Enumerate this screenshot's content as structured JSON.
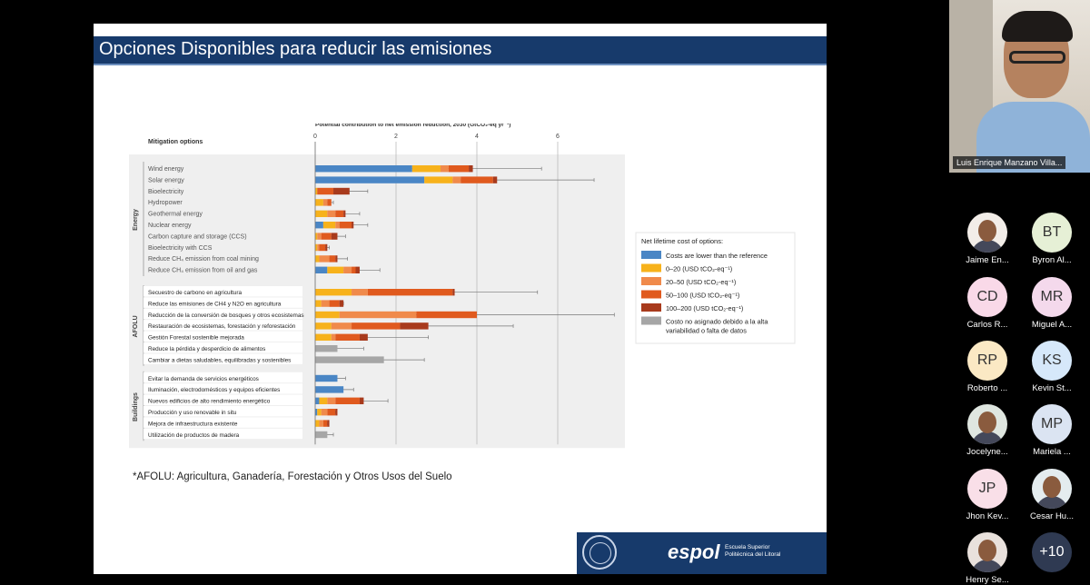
{
  "slide": {
    "title": "Opciones Disponibles para reducir las emisiones",
    "footnote": "*AFOLU: Agricultura, Ganadería, Forestación y Otros Usos del Suelo",
    "logo_text": "espol",
    "logo_subtitle": "Escuela Superior Politécnica del Litoral"
  },
  "chart_data": {
    "type": "bar",
    "stacked": true,
    "orientation": "horizontal",
    "title": "Potential contribution to net emission reduction, 2030 (GtCO₂-eq yr⁻¹)",
    "row_header": "Mitigation options",
    "xlim": [
      0,
      7
    ],
    "x_ticks": [
      "0",
      "2",
      "4",
      "6"
    ],
    "x_tick_values": [
      0,
      2,
      4,
      6
    ],
    "grid": true,
    "legend_position": "right",
    "legend_title": "Net lifetime cost of options:",
    "legend": [
      {
        "label": "Costs are lower than the reference",
        "color": "#4a86c5"
      },
      {
        "label": "0–20 (USD tCO₂-eq⁻¹)",
        "color": "#f7b21b"
      },
      {
        "label": "20–50 (USD tCO₂-eq⁻¹)",
        "color": "#f08a4b"
      },
      {
        "label": "50–100 (USD tCO₂-eq⁻¹)",
        "color": "#e05a1e"
      },
      {
        "label": "100–200 (USD tCO₂-eq⁻¹)",
        "color": "#a83a1c"
      },
      {
        "label": "Costo no asignado debido a la alta variabilidad o falta de datos",
        "color": "#a6a6a6"
      }
    ],
    "groups": [
      {
        "name": "Energy",
        "first_row": 0,
        "last_row": 9
      },
      {
        "name": "AFOLU",
        "first_row": 10,
        "last_row": 16
      },
      {
        "name": "Buildings",
        "first_row": 17,
        "last_row": 22
      }
    ],
    "rows": [
      {
        "label": "Wind energy",
        "segments": [
          2.4,
          0.7,
          0.2,
          0.5,
          0.1,
          0
        ],
        "error_max": 5.6
      },
      {
        "label": "Solar energy",
        "segments": [
          2.7,
          0.7,
          0.2,
          0.8,
          0.1,
          0
        ],
        "error_max": 6.9
      },
      {
        "label": "Bioelectricity",
        "segments": [
          0,
          0.05,
          0,
          0.4,
          0.4,
          0
        ],
        "error_max": 1.3
      },
      {
        "label": "Hydropower",
        "segments": [
          0,
          0.2,
          0.1,
          0.1,
          0,
          0
        ],
        "error_max": 0.45
      },
      {
        "label": "Geothermal energy",
        "segments": [
          0,
          0.3,
          0.2,
          0.2,
          0.05,
          0
        ],
        "error_max": 1.1
      },
      {
        "label": "Nuclear energy",
        "segments": [
          0.2,
          0.3,
          0.1,
          0.3,
          0.05,
          0
        ],
        "error_max": 1.3
      },
      {
        "label": "Carbon capture and storage (CCS)",
        "segments": [
          0,
          0.05,
          0.1,
          0.25,
          0.15,
          0
        ],
        "error_max": 0.75
      },
      {
        "label": "Bioelectricity with CCS",
        "segments": [
          0,
          0.05,
          0.05,
          0.15,
          0.05,
          0
        ],
        "error_max": 0.35
      },
      {
        "label": "Reduce CH₄ emission from coal mining",
        "segments": [
          0,
          0.1,
          0.25,
          0.15,
          0.05,
          0
        ],
        "error_max": 0.8
      },
      {
        "label": "Reduce CH₄ emission from oil and gas",
        "segments": [
          0.3,
          0.4,
          0.2,
          0.1,
          0.1,
          0
        ],
        "error_max": 1.6
      },
      {
        "label": "Secuestro de carbono en agricultura",
        "segments": [
          0,
          0.9,
          0.4,
          2.1,
          0.05,
          0
        ],
        "error_max": 5.5
      },
      {
        "label": "Reduce las emisiones de CH4 y N2O en agricultura",
        "segments": [
          0,
          0.15,
          0.2,
          0.25,
          0.1,
          0
        ],
        "error_max": 0.7
      },
      {
        "label": "Reducción de la conversión de bosques y otros ecosistemas",
        "segments": [
          0,
          0.6,
          1.9,
          1.5,
          0,
          0
        ],
        "error_max": 7.4
      },
      {
        "label": "Restauración de ecosistemas, forestación y reforestación",
        "segments": [
          0,
          0.4,
          0.5,
          1.2,
          0.7,
          0
        ],
        "error_max": 4.9
      },
      {
        "label": "Gestión Forestal sostenible mejorada",
        "segments": [
          0,
          0.4,
          0.1,
          0.6,
          0.2,
          0
        ],
        "error_max": 2.8
      },
      {
        "label": "Reduce la pérdida y desperdicio de alimentos",
        "segments": [
          0,
          0,
          0,
          0,
          0,
          0.55
        ],
        "error_max": 1.2
      },
      {
        "label": "Cambiar a dietas saludables, equilibradas y sostenibles",
        "segments": [
          0,
          0,
          0,
          0,
          0,
          1.7
        ],
        "error_max": 2.7
      },
      {
        "label": "Evitar la demanda de servicios energéticos",
        "segments": [
          0.55,
          0,
          0,
          0,
          0,
          0
        ],
        "error_max": 0.75
      },
      {
        "label": "Iluminación, electrodomésticos y equipos eficientes",
        "segments": [
          0.7,
          0,
          0,
          0,
          0,
          0
        ],
        "error_max": 0.95
      },
      {
        "label": "Nuevos edificios de alto rendimiento energético",
        "segments": [
          0.1,
          0.2,
          0.2,
          0.6,
          0.1,
          0
        ],
        "error_max": 1.8
      },
      {
        "label": "Producción y uso renovable in situ",
        "segments": [
          0.05,
          0.1,
          0.15,
          0.2,
          0.05,
          0
        ],
        "error_max": 0.5
      },
      {
        "label": "Mejora de infraestructura existente",
        "segments": [
          0,
          0.1,
          0.1,
          0.1,
          0.05,
          0
        ],
        "error_max": 0.3
      },
      {
        "label": "Utilización de productos de madera",
        "segments": [
          0,
          0,
          0,
          0,
          0,
          0.3
        ],
        "error_max": 0.45
      }
    ]
  },
  "presenter": {
    "name": "Luis Enrique Manzano Villa..."
  },
  "participants": [
    {
      "initials": "",
      "name": "Jaime En...",
      "color": "#f2ede8",
      "photo": true
    },
    {
      "initials": "BT",
      "name": "Byron Al...",
      "color": "#e6f0d6"
    },
    {
      "initials": "CD",
      "name": "Carlos R...",
      "color": "#f9d9e8"
    },
    {
      "initials": "MR",
      "name": "Miguel A...",
      "color": "#f4d9ec"
    },
    {
      "initials": "RP",
      "name": "Roberto ...",
      "color": "#fbe9c4"
    },
    {
      "initials": "KS",
      "name": "Kevin St...",
      "color": "#d6e8fa"
    },
    {
      "initials": "",
      "name": "Jocelyne...",
      "color": "#dfe6e0",
      "photo": true
    },
    {
      "initials": "MP",
      "name": "Mariela ...",
      "color": "#dbe4f2"
    },
    {
      "initials": "JP",
      "name": "Jhon Kev...",
      "color": "#f9dfe8"
    },
    {
      "initials": "",
      "name": "Cesar Hu...",
      "color": "#e4ecef",
      "photo": true
    },
    {
      "initials": "",
      "name": "Henry Se...",
      "color": "#e9e1dc",
      "photo": true
    },
    {
      "initials": "+10",
      "name": "",
      "color": "#2f3a52"
    }
  ]
}
